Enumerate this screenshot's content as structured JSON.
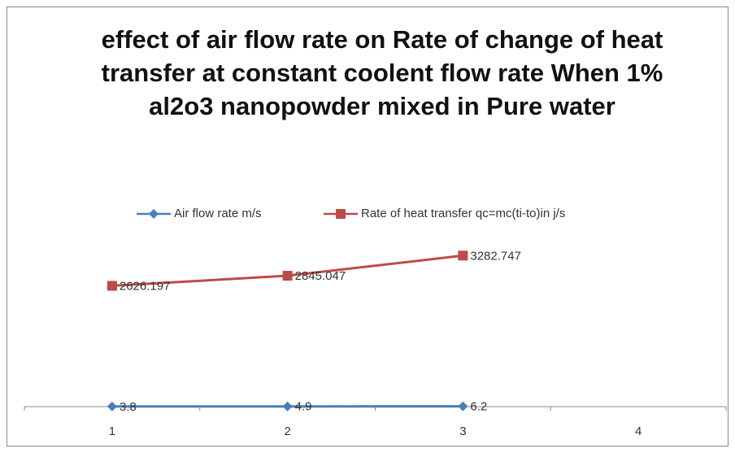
{
  "chart_data": {
    "type": "line",
    "title": "effect of air flow rate on Rate of change of heat transfer at constant coolent flow rate When 1% al2o3 nanopowder mixed in Pure water",
    "categories": [
      "1",
      "2",
      "3",
      "4"
    ],
    "series": [
      {
        "name": "Air flow rate m/s",
        "color": "#4a7ebb",
        "marker": "diamond",
        "values": [
          3.8,
          4.9,
          6.2,
          null
        ]
      },
      {
        "name": "Rate of heat transfer qc=mc(ti-to)in j/s",
        "color": "#be4b48",
        "marker": "square",
        "values": [
          2626.197,
          2845.047,
          3282.747,
          null
        ]
      }
    ],
    "ylim": [
      0,
      3500
    ],
    "legend": "top",
    "grid": false
  }
}
